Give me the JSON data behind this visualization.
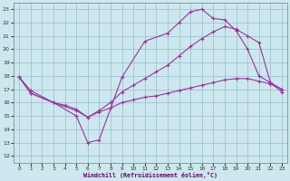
{
  "xlabel": "Windchill (Refroidissement éolien,°C)",
  "background_color": "#cce8ee",
  "line_color": "#993399",
  "grid_color": "#99bbcc",
  "xlim_min": -0.5,
  "xlim_max": 23.5,
  "ylim_min": 11.5,
  "ylim_max": 23.5,
  "xticks": [
    0,
    1,
    2,
    3,
    4,
    5,
    6,
    7,
    8,
    9,
    10,
    11,
    12,
    13,
    14,
    15,
    16,
    17,
    18,
    19,
    20,
    21,
    22,
    23
  ],
  "yticks": [
    12,
    13,
    14,
    15,
    16,
    17,
    18,
    19,
    20,
    21,
    22,
    23
  ],
  "line1_x": [
    0,
    1,
    3,
    5,
    6,
    7,
    9,
    11,
    13,
    14,
    15,
    16,
    17,
    18,
    19,
    20,
    21,
    22,
    23
  ],
  "line1_y": [
    17.9,
    16.9,
    16.0,
    15.0,
    13.0,
    13.2,
    17.9,
    20.6,
    21.2,
    22.0,
    22.8,
    23.0,
    22.3,
    22.2,
    21.4,
    20.0,
    18.0,
    17.5,
    16.8
  ],
  "line2_x": [
    0,
    1,
    3,
    5,
    6,
    7,
    8,
    9,
    10,
    11,
    12,
    13,
    14,
    15,
    16,
    17,
    18,
    19,
    20,
    21,
    22,
    23
  ],
  "line2_y": [
    17.9,
    16.7,
    16.0,
    15.4,
    14.9,
    15.4,
    16.0,
    16.8,
    17.3,
    17.8,
    18.3,
    18.8,
    19.5,
    20.2,
    20.8,
    21.3,
    21.7,
    21.5,
    21.0,
    20.5,
    17.5,
    17.0
  ],
  "line3_x": [
    0,
    1,
    3,
    4,
    5,
    6,
    7,
    8,
    9,
    10,
    11,
    12,
    13,
    14,
    15,
    16,
    17,
    18,
    19,
    20,
    21,
    22,
    23
  ],
  "line3_y": [
    17.9,
    16.7,
    16.0,
    15.8,
    15.5,
    14.9,
    15.3,
    15.6,
    16.0,
    16.2,
    16.4,
    16.5,
    16.7,
    16.9,
    17.1,
    17.3,
    17.5,
    17.7,
    17.8,
    17.8,
    17.6,
    17.4,
    17.0
  ]
}
